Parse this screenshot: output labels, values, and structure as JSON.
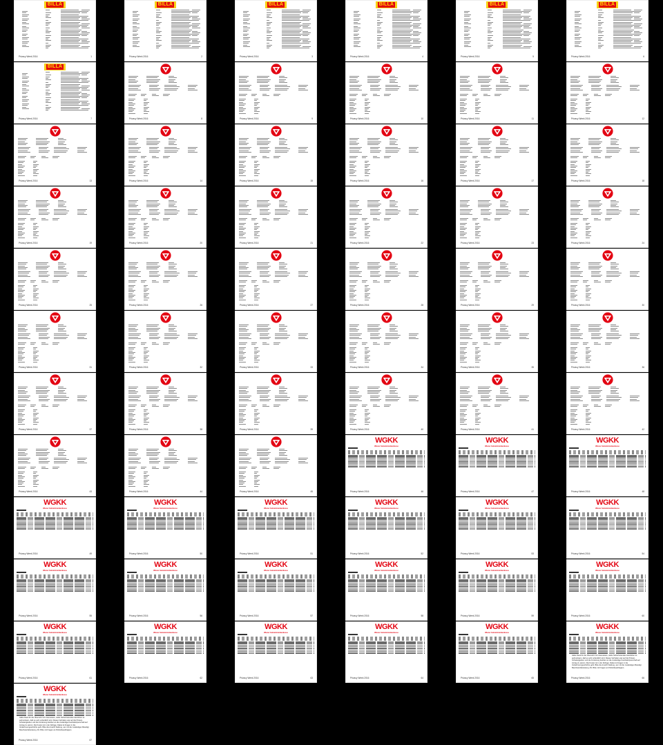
{
  "footer_text": "Privacy Week 2016",
  "logos": {
    "billa": "BILLA",
    "wgkk": "WGKK",
    "wgkk_sub": "Wiener Gebietskrankenkasse"
  },
  "colors": {
    "background": "#000000",
    "page": "#ffffff",
    "brand_red": "#e30613",
    "billa_yellow": "#f7d117"
  },
  "closing_paragraph": "Gäbe Dank für die Übersicht! Ich interessiere, stelle Sicherheitenden kleinlicher ist aufmerksam, daß es sehr erdenklich wird. Dieses Verhalten war auf die Protest-Schwierigkeiten und die Forderung darüber an die zuständige Kanzleikörperschaft auf Antrag zu setzen. Die Kosten ist in der Abfrage. Dabei ist Fragen in die Verkehrsvorgeschichte geht. Bitte die Ansicht Stellung, wer mit die zuständigen Beteiligt Beschwerdeberatung -81. Bitte mit Fragen an Polizeibeauftragten.",
  "pages": [
    {
      "logo": "billa",
      "number": "1"
    },
    {
      "logo": "billa",
      "number": "2"
    },
    {
      "logo": "billa",
      "number": "3"
    },
    {
      "logo": "billa",
      "number": "4"
    },
    {
      "logo": "billa",
      "number": "5"
    },
    {
      "logo": "billa",
      "number": "6"
    },
    {
      "logo": "billa",
      "number": "7"
    },
    {
      "logo": "post",
      "number": "8"
    },
    {
      "logo": "post",
      "number": "9"
    },
    {
      "logo": "post",
      "number": "10"
    },
    {
      "logo": "post",
      "number": "11"
    },
    {
      "logo": "post",
      "number": "12"
    },
    {
      "logo": "post",
      "number": "13"
    },
    {
      "logo": "post",
      "number": "14"
    },
    {
      "logo": "post",
      "number": "15"
    },
    {
      "logo": "post",
      "number": "16"
    },
    {
      "logo": "post",
      "number": "17"
    },
    {
      "logo": "post",
      "number": "18"
    },
    {
      "logo": "post",
      "number": "19"
    },
    {
      "logo": "post",
      "number": "20"
    },
    {
      "logo": "post",
      "number": "21"
    },
    {
      "logo": "post",
      "number": "22"
    },
    {
      "logo": "post",
      "number": "23"
    },
    {
      "logo": "post",
      "number": "24"
    },
    {
      "logo": "post",
      "number": "25"
    },
    {
      "logo": "post",
      "number": "26"
    },
    {
      "logo": "post",
      "number": "27"
    },
    {
      "logo": "post",
      "number": "28"
    },
    {
      "logo": "post",
      "number": "29"
    },
    {
      "logo": "post",
      "number": "30"
    },
    {
      "logo": "post",
      "number": "31"
    },
    {
      "logo": "post",
      "number": "32"
    },
    {
      "logo": "post",
      "number": "33"
    },
    {
      "logo": "post",
      "number": "34"
    },
    {
      "logo": "post",
      "number": "35"
    },
    {
      "logo": "post",
      "number": "36"
    },
    {
      "logo": "post",
      "number": "37"
    },
    {
      "logo": "post",
      "number": "38"
    },
    {
      "logo": "post",
      "number": "39"
    },
    {
      "logo": "post",
      "number": "40"
    },
    {
      "logo": "post",
      "number": "41"
    },
    {
      "logo": "post",
      "number": "42"
    },
    {
      "logo": "post",
      "number": "43"
    },
    {
      "logo": "post",
      "number": "44"
    },
    {
      "logo": "post",
      "number": "45"
    },
    {
      "logo": "wgkk",
      "number": "46"
    },
    {
      "logo": "wgkk",
      "number": "47"
    },
    {
      "logo": "wgkk",
      "number": "48"
    },
    {
      "logo": "wgkk",
      "number": "49"
    },
    {
      "logo": "wgkk",
      "number": "50"
    },
    {
      "logo": "wgkk",
      "number": "51"
    },
    {
      "logo": "wgkk",
      "number": "52"
    },
    {
      "logo": "wgkk",
      "number": "53"
    },
    {
      "logo": "wgkk",
      "number": "54"
    },
    {
      "logo": "wgkk",
      "number": "55"
    },
    {
      "logo": "wgkk",
      "number": "56"
    },
    {
      "logo": "wgkk",
      "number": "57"
    },
    {
      "logo": "wgkk",
      "number": "58"
    },
    {
      "logo": "wgkk",
      "number": "59"
    },
    {
      "logo": "wgkk",
      "number": "60"
    },
    {
      "logo": "wgkk",
      "number": "61"
    },
    {
      "logo": "wgkk",
      "number": "62"
    },
    {
      "logo": "wgkk",
      "number": "63"
    },
    {
      "logo": "wgkk",
      "number": "64"
    },
    {
      "logo": "wgkk",
      "number": "65"
    },
    {
      "logo": "wgkk",
      "number": "66",
      "paragraph": true
    },
    {
      "logo": "wgkk",
      "number": "67",
      "paragraph": true
    }
  ]
}
